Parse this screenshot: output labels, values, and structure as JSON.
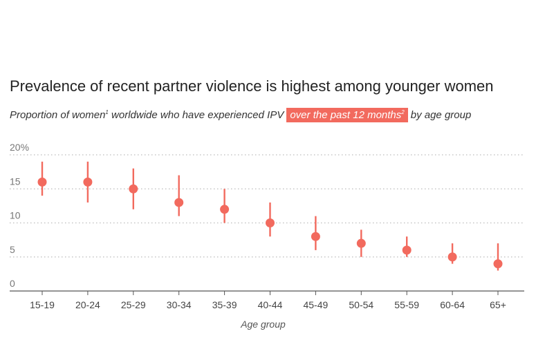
{
  "header": {
    "title": "Prevalence of recent partner violence is highest among younger women",
    "subtitle_pre": "Proportion of women",
    "subtitle_sup1": "1",
    "subtitle_mid": " worldwide who have experienced IPV",
    "subtitle_highlight": "over the past 12 months",
    "subtitle_sup2": "2",
    "subtitle_post": "by age group"
  },
  "colors": {
    "accent": "#f26a5e",
    "grid": "#bbbbbb",
    "axis": "#555555"
  },
  "chart_data": {
    "type": "scatter",
    "title": "Prevalence of recent partner violence is highest among younger women",
    "xlabel": "Age group",
    "ylabel": "",
    "ylim": [
      0,
      20
    ],
    "yticks": [
      0,
      5,
      10,
      15,
      20
    ],
    "ytick_labels": [
      "0",
      "5",
      "10",
      "15",
      "20%"
    ],
    "grid": true,
    "categories": [
      "15-19",
      "20-24",
      "25-29",
      "30-34",
      "35-39",
      "40-44",
      "45-49",
      "50-54",
      "55-59",
      "60-64",
      "65+"
    ],
    "values": [
      16,
      16,
      15,
      13,
      12,
      10,
      8,
      7,
      6,
      5,
      4
    ],
    "low": [
      14,
      13,
      12,
      11,
      10,
      8,
      6,
      5,
      5,
      4,
      3
    ],
    "high": [
      19,
      19,
      18,
      17,
      15,
      13,
      11,
      9,
      8,
      7,
      7
    ]
  }
}
